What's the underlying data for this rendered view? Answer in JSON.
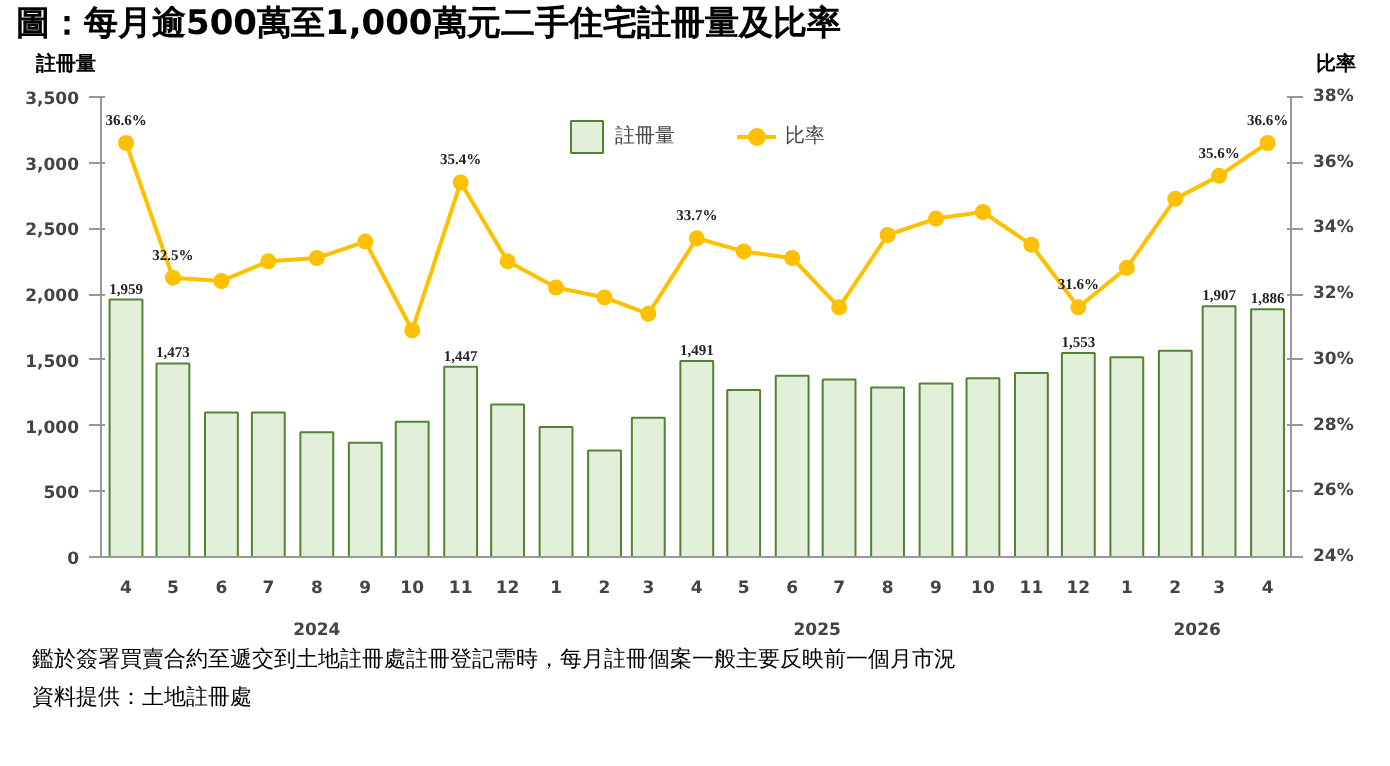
{
  "chart_data": {
    "type": "bar",
    "title": "圖：每月逾500萬至1,000萬元二手住宅註冊量及比率",
    "ylabel": "註冊量",
    "y2label": "比率",
    "x": [
      "2024-04",
      "2024-05",
      "2024-06",
      "2024-07",
      "2024-08",
      "2024-09",
      "2024-10",
      "2024-11",
      "2024-12",
      "2025-01",
      "2025-02",
      "2025-03",
      "2025-04",
      "2025-05",
      "2025-06",
      "2025-07",
      "2025-08",
      "2025-09",
      "2025-10",
      "2025-11",
      "2025-12",
      "2026-01",
      "2026-02",
      "2026-03",
      "2026-04"
    ],
    "xlim": [
      "2024-03-16",
      "2026-04-16"
    ],
    "xticks": [
      {
        "value": "2024-04",
        "label": "4"
      },
      {
        "value": "2024-05",
        "label": "5"
      },
      {
        "value": "2024-06",
        "label": "6"
      },
      {
        "value": "2024-07",
        "label": "7"
      },
      {
        "value": "2024-08",
        "label": "8"
      },
      {
        "value": "2024-09",
        "label": "9"
      },
      {
        "value": "2024-10",
        "label": "10"
      },
      {
        "value": "2024-11",
        "label": "11"
      },
      {
        "value": "2024-12",
        "label": "12"
      },
      {
        "value": "2025-01",
        "label": "1"
      },
      {
        "value": "2025-02",
        "label": "2"
      },
      {
        "value": "2025-03",
        "label": "3"
      },
      {
        "value": "2025-04",
        "label": "4"
      },
      {
        "value": "2025-05",
        "label": "5"
      },
      {
        "value": "2025-06",
        "label": "6"
      },
      {
        "value": "2025-07",
        "label": "7"
      },
      {
        "value": "2025-08",
        "label": "8"
      },
      {
        "value": "2025-09",
        "label": "9"
      },
      {
        "value": "2025-10",
        "label": "10"
      },
      {
        "value": "2025-11",
        "label": "11"
      },
      {
        "value": "2025-12",
        "label": "12"
      },
      {
        "value": "2026-01",
        "label": "1"
      },
      {
        "value": "2026-02",
        "label": "2"
      },
      {
        "value": "2026-03",
        "label": "3"
      },
      {
        "value": "2026-04",
        "label": "4"
      }
    ],
    "ylim": [
      0,
      3500
    ],
    "yticks": [
      0,
      500,
      {
        "value": 1000,
        "label": "1,000"
      },
      {
        "value": 1500,
        "label": "1,500"
      },
      {
        "value": 2000,
        "label": "2,000"
      },
      {
        "value": 2500,
        "label": "2,500"
      },
      {
        "value": 3000,
        "label": "3,000"
      },
      {
        "value": 3500,
        "label": "3,500"
      }
    ],
    "y2lim": [
      24,
      38
    ],
    "y2ticks": [
      {
        "value": 24,
        "label": "24%"
      },
      {
        "value": 26,
        "label": "26%"
      },
      {
        "value": 28,
        "label": "28%"
      },
      {
        "value": 30,
        "label": "30%"
      },
      {
        "value": 32,
        "label": "32%"
      },
      {
        "value": 34,
        "label": "34%"
      },
      {
        "value": 36,
        "label": "36%"
      },
      {
        "value": 38,
        "label": "38%"
      }
    ],
    "series": [
      {
        "name": "註冊量",
        "color": "#e2efd9",
        "values": [
          1959,
          1473,
          1100,
          1100,
          950,
          870,
          1030,
          1447,
          1160,
          990,
          810,
          1060,
          1491,
          1270,
          1380,
          1350,
          1290,
          1320,
          1360,
          1400,
          1553,
          1520,
          1570,
          1907,
          1886
        ],
        "value_labels": [
          "1,959",
          "1,473",
          null,
          null,
          null,
          null,
          null,
          "1,447",
          null,
          null,
          null,
          null,
          "1,491",
          null,
          null,
          null,
          null,
          null,
          null,
          null,
          "1,553",
          null,
          null,
          "1,907",
          "1,886"
        ]
      },
      {
        "name": "比率",
        "type": "line",
        "axis": "y2",
        "color": "#ffc000",
        "values": [
          36.6,
          32.5,
          32.4,
          33.0,
          33.1,
          33.6,
          30.9,
          35.4,
          33.0,
          32.2,
          31.9,
          31.4,
          33.7,
          33.3,
          33.1,
          31.6,
          33.8,
          34.3,
          34.5,
          33.5,
          31.6,
          32.8,
          34.9,
          35.6,
          36.6
        ],
        "value_labels": [
          "36.6%",
          "32.5%",
          null,
          null,
          null,
          null,
          null,
          "35.4%",
          null,
          null,
          null,
          null,
          "33.7%",
          null,
          null,
          null,
          null,
          null,
          null,
          null,
          "31.6%",
          null,
          null,
          "35.6%",
          "36.6%"
        ]
      }
    ],
    "marker": "circle",
    "grid": false,
    "legend": "top",
    "annotations": [
      "2024",
      "2025",
      "2026",
      "鑑於簽署買賣合約至遞交到土地註冊處註冊登記需時，每月註冊個案一般主要反映前一個月市況",
      "資料提供：土地註冊處"
    ]
  }
}
